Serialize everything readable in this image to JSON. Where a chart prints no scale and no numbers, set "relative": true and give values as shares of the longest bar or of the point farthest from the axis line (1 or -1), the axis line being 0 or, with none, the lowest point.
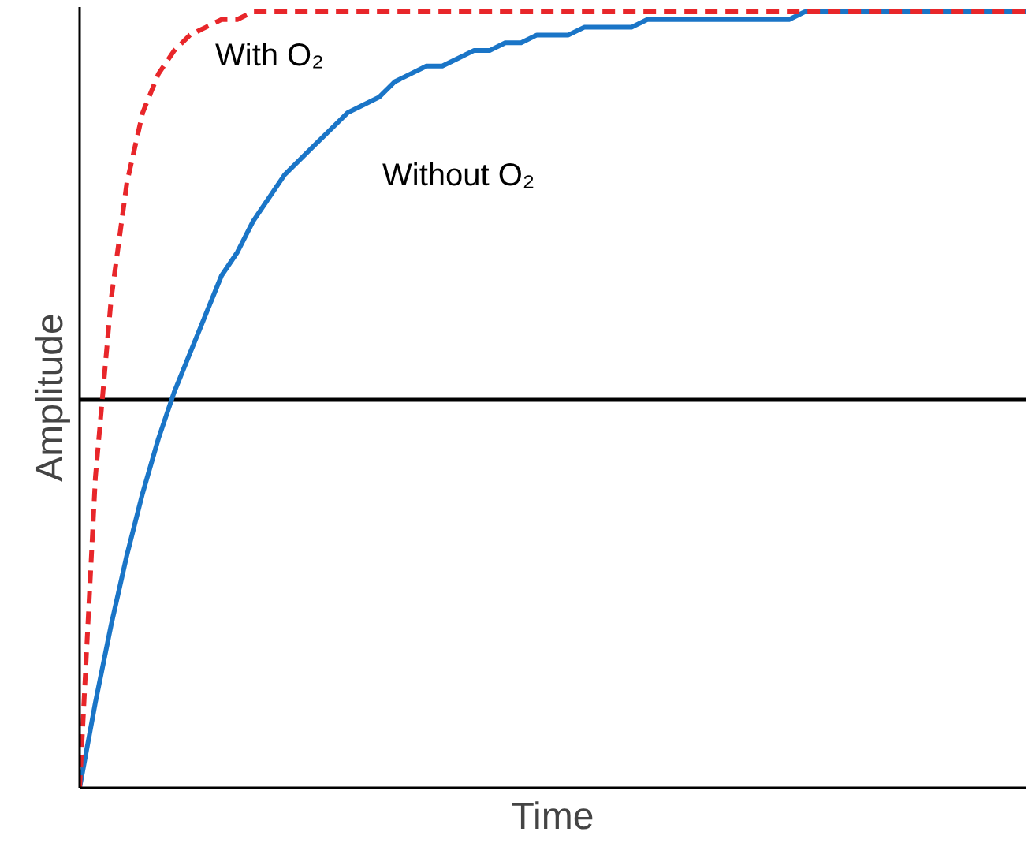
{
  "chart_data": {
    "type": "line",
    "relative": true,
    "xlabel": "Time",
    "ylabel": "Amplitude",
    "legend": false,
    "marker": "none",
    "categories": [
      null,
      null,
      null,
      null,
      null,
      null,
      null,
      null,
      null,
      null,
      null,
      null,
      null,
      null,
      null,
      null,
      null,
      null,
      null,
      null,
      null,
      null,
      null,
      null,
      null,
      null,
      null,
      null,
      null,
      null,
      null,
      null,
      null,
      null,
      null,
      null,
      null,
      null,
      null,
      null,
      null,
      null,
      null,
      null,
      null,
      null,
      null,
      null,
      null,
      null,
      null,
      null,
      null,
      null,
      null,
      null,
      null,
      null,
      null,
      null,
      null
    ],
    "series": [
      {
        "name": "With O₂",
        "color": "#e8262a",
        "line_style": "dashed",
        "values": [
          0,
          0.4,
          0.63,
          0.78,
          0.87,
          0.92,
          0.95,
          0.97,
          0.98,
          0.99,
          0.99,
          1,
          1,
          1,
          1,
          1,
          1,
          1,
          1,
          1,
          1,
          1,
          1,
          1,
          1,
          1,
          1,
          1,
          1,
          1,
          1,
          1,
          1,
          1,
          1,
          1,
          1,
          1,
          1,
          1,
          1,
          1,
          1,
          1,
          1,
          1,
          1,
          1,
          1,
          1,
          1,
          1,
          1,
          1,
          1,
          1,
          1,
          1,
          1,
          1,
          1
        ]
      },
      {
        "name": "Without O₂",
        "color": "#1a75c7",
        "line_style": "solid",
        "values": [
          0,
          0.11,
          0.21,
          0.3,
          0.38,
          0.45,
          0.51,
          0.56,
          0.61,
          0.66,
          0.69,
          0.73,
          0.76,
          0.79,
          0.81,
          0.83,
          0.85,
          0.87,
          0.88,
          0.89,
          0.91,
          0.92,
          0.93,
          0.93,
          0.94,
          0.95,
          0.95,
          0.96,
          0.96,
          0.97,
          0.97,
          0.97,
          0.98,
          0.98,
          0.98,
          0.98,
          0.99,
          0.99,
          0.99,
          0.99,
          0.99,
          0.99,
          0.99,
          0.99,
          0.99,
          0.99,
          1,
          1,
          1,
          1,
          1,
          1,
          1,
          1,
          1,
          1,
          1,
          1,
          1,
          1,
          1
        ]
      }
    ],
    "ref_lines": [
      {
        "axis": "y",
        "value": 0.5,
        "color": "#000000"
      }
    ]
  }
}
